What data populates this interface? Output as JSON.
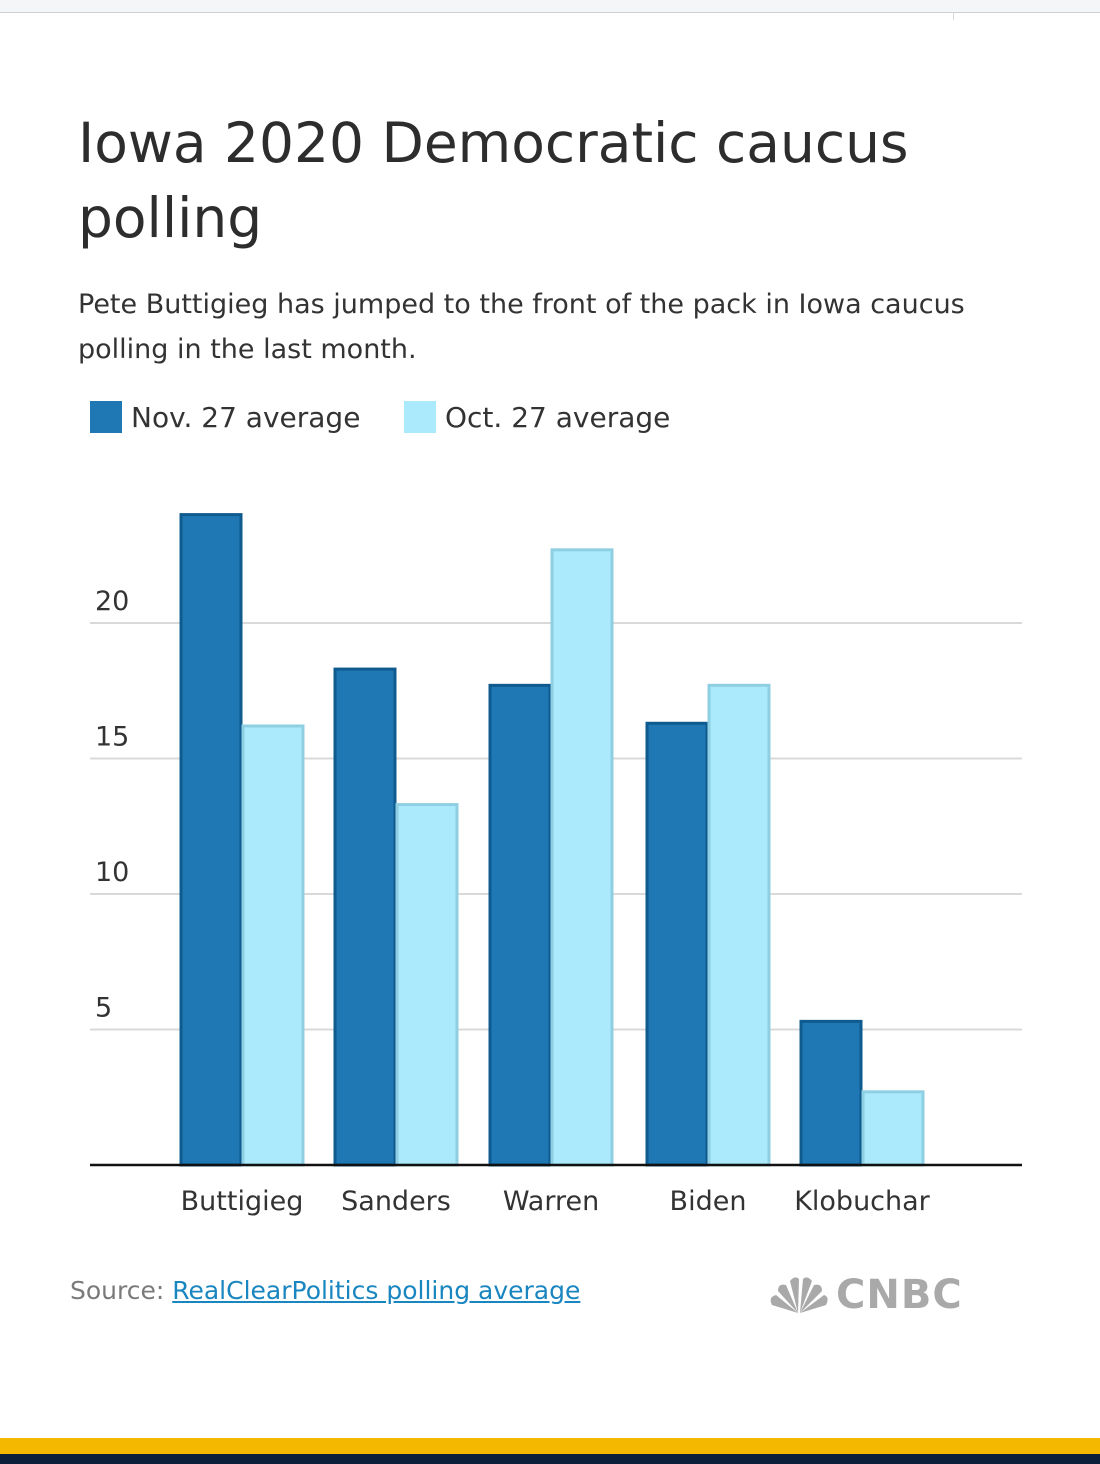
{
  "header": {
    "title": "Iowa 2020 Democratic caucus polling",
    "subtitle": "Pete Buttigieg has jumped to the front of the pack in Iowa caucus polling in the last month."
  },
  "legend": [
    {
      "label": "Nov. 27 average",
      "color": "#1f77b4"
    },
    {
      "label": "Oct. 27 average",
      "color": "#aaeafc"
    }
  ],
  "footer": {
    "source_prefix": "Source: ",
    "source_link": "RealClearPolitics polling average",
    "logo_text": "CNBC"
  },
  "chart_data": {
    "type": "bar",
    "title": "Iowa 2020 Democratic caucus polling",
    "subtitle": "Pete Buttigieg has jumped to the front of the pack in Iowa caucus polling in the last month.",
    "xlabel": "",
    "ylabel": "",
    "categories": [
      "Buttigieg",
      "Sanders",
      "Warren",
      "Biden",
      "Klobuchar"
    ],
    "series": [
      {
        "name": "Nov. 27 average",
        "color": "#1f77b4",
        "stroke": "#0f5b8f",
        "values": [
          24.0,
          18.3,
          17.7,
          16.3,
          5.3
        ]
      },
      {
        "name": "Oct. 27 average",
        "color": "#aaeafc",
        "stroke": "#8fcfe3",
        "values": [
          16.2,
          13.3,
          22.7,
          17.7,
          2.7
        ]
      }
    ],
    "yticks": [
      5,
      10,
      15,
      20
    ],
    "ylim": [
      0,
      25
    ],
    "grid": true,
    "legend_position": "top-left"
  }
}
